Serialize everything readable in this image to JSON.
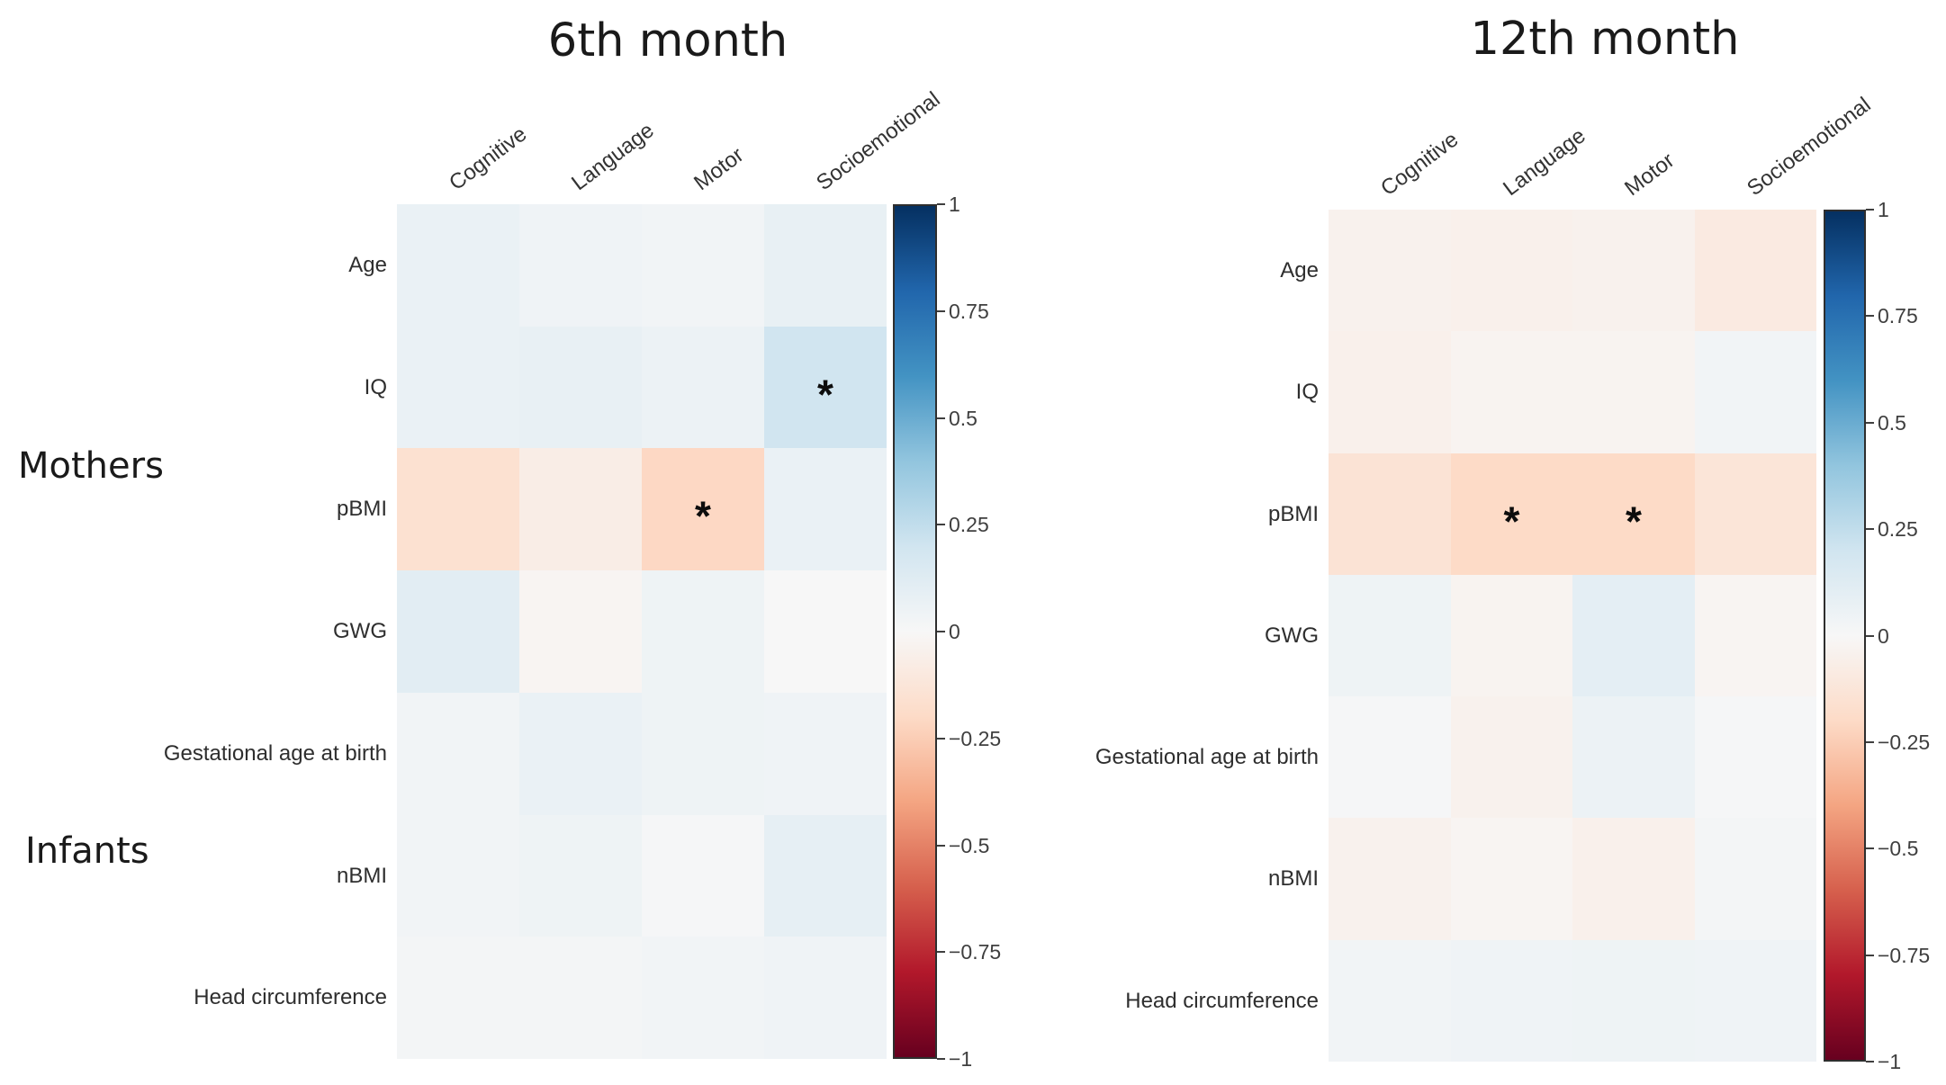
{
  "figure_title": "",
  "groups": [
    {
      "label": "Mothers"
    },
    {
      "label": "Infants"
    }
  ],
  "chart_data": {
    "type": "heatmap",
    "subtype": "correlation-matrix",
    "colormap": "RdBu",
    "value_range": [
      -1,
      1
    ],
    "grid": false,
    "legend_position": "right-colorbar",
    "significance_marker": "*",
    "colorbar_ticks": [
      "1",
      "0.75",
      "0.5",
      "0.25",
      "0",
      "−0.25",
      "−0.5",
      "−0.75",
      "−1"
    ],
    "columns": [
      "Cognitive",
      "Language",
      "Motor",
      "Socioemotional"
    ],
    "rows": [
      "Age",
      "IQ",
      "pBMI",
      "GWG",
      "Gestational age at birth",
      "nBMI",
      "Head circumference"
    ],
    "row_groups": [
      {
        "label": "Mothers",
        "rows": [
          "Age",
          "IQ",
          "pBMI",
          "GWG"
        ]
      },
      {
        "label": "Infants",
        "rows": [
          "Gestational age at birth",
          "nBMI",
          "Head circumference"
        ]
      }
    ],
    "colorscale_anchors": [
      {
        "t": 0.0,
        "color": "#67001f"
      },
      {
        "t": 0.1,
        "color": "#b2182b"
      },
      {
        "t": 0.2,
        "color": "#d6604d"
      },
      {
        "t": 0.3,
        "color": "#f4a582"
      },
      {
        "t": 0.4,
        "color": "#fddbc7"
      },
      {
        "t": 0.5,
        "color": "#f7f7f7"
      },
      {
        "t": 0.6,
        "color": "#d1e5f0"
      },
      {
        "t": 0.7,
        "color": "#92c5de"
      },
      {
        "t": 0.8,
        "color": "#4393c3"
      },
      {
        "t": 0.9,
        "color": "#2166ac"
      },
      {
        "t": 1.0,
        "color": "#053061"
      }
    ],
    "panels": [
      {
        "title": "6th month",
        "values": [
          [
            0.07,
            0.04,
            0.03,
            0.08
          ],
          [
            0.07,
            0.08,
            0.06,
            0.2
          ],
          [
            -0.16,
            -0.07,
            -0.21,
            0.07
          ],
          [
            0.11,
            -0.02,
            0.05,
            0.0
          ],
          [
            0.03,
            0.07,
            0.05,
            0.04
          ],
          [
            0.03,
            0.05,
            0.01,
            0.09
          ],
          [
            0.02,
            0.02,
            0.03,
            0.04
          ]
        ],
        "significant_cells": [
          {
            "row": "IQ",
            "col": "Socioemotional",
            "r": 1,
            "c": 3
          },
          {
            "row": "pBMI",
            "col": "Motor",
            "r": 2,
            "c": 2
          }
        ]
      },
      {
        "title": "12th month",
        "values": [
          [
            -0.04,
            -0.05,
            -0.04,
            -0.09
          ],
          [
            -0.05,
            -0.03,
            -0.03,
            0.03
          ],
          [
            -0.14,
            -0.2,
            -0.2,
            -0.13
          ],
          [
            0.05,
            -0.03,
            0.1,
            -0.02
          ],
          [
            0.01,
            -0.04,
            0.06,
            0.01
          ],
          [
            -0.04,
            -0.02,
            -0.05,
            0.02
          ],
          [
            0.03,
            0.04,
            0.05,
            0.04
          ]
        ],
        "significant_cells": [
          {
            "row": "pBMI",
            "col": "Language",
            "r": 2,
            "c": 1
          },
          {
            "row": "pBMI",
            "col": "Motor",
            "r": 2,
            "c": 2
          }
        ]
      }
    ]
  }
}
